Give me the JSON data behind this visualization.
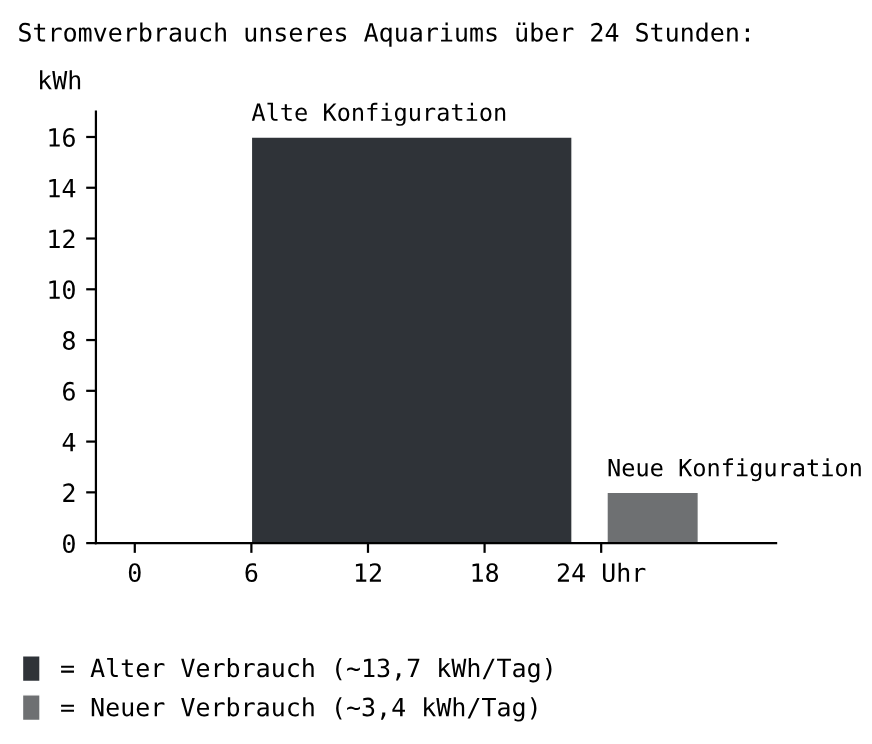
{
  "chart_data": {
    "type": "histogram",
    "title": "Stromverbrauch unseres Aquariums über 24 Stunden:",
    "ylabel": "kWh",
    "bins": [
      6,
      22.5,
      24.3,
      29
    ],
    "series": [
      {
        "name": "= Alter Verbrauch (~13,7 kWh/Tag)",
        "color": "#2f3338",
        "values": [
          16,
          null,
          null
        ]
      },
      {
        "name": "= Neuer Verbrauch (~3,4 kWh/Tag)",
        "color": "#6e7072",
        "values": [
          null,
          null,
          2
        ]
      }
    ],
    "annotations": [
      {
        "text": "Alte Konfiguration",
        "x": 6,
        "y": 16
      },
      {
        "text": "Neue Konfiguration",
        "x": 24.3,
        "y": 2
      }
    ],
    "xlim": [
      -2,
      33
    ],
    "xticks": [
      0,
      6,
      12,
      18,
      {
        "value": 24,
        "label": "24 Uhr"
      }
    ],
    "ylim": [
      0,
      17
    ],
    "yticks": [
      0,
      2,
      4,
      6,
      8,
      10,
      12,
      14,
      16
    ],
    "grid": false,
    "legend": "bottom"
  }
}
